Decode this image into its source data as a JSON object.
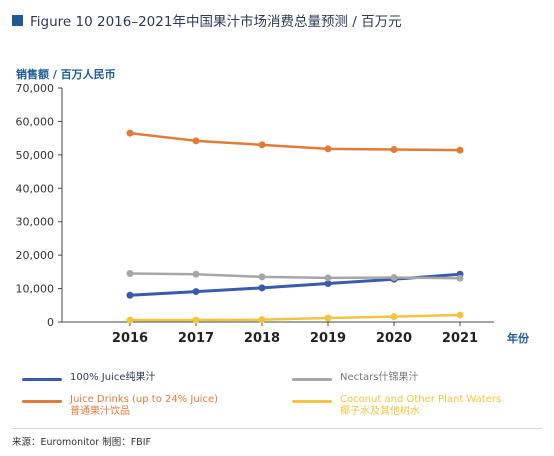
{
  "title": "Figure 10 2016–2021年中国果汁市场消费总量预测 / 百万元",
  "source": "来源：Euromonitor  制图：FBIF",
  "chart_data": {
    "type": "line",
    "title": "Figure 10 2016–2021年中国果汁市场消费总量预测 / 百万元",
    "ylabel": "销售额 / 百万人民币",
    "xlabel": "年份",
    "x": [
      "2016",
      "2017",
      "2018",
      "2019",
      "2020",
      "2021"
    ],
    "ylim": [
      0,
      70000
    ],
    "yticks": [
      "0",
      "10,000",
      "20,000",
      "30,000",
      "40,000",
      "50,000",
      "60,000",
      "70,000"
    ],
    "grid": false,
    "legend_position": "bottom",
    "series": [
      {
        "name": "100% Juice纯果汁",
        "name_lines": [
          "100% Juice纯果汁"
        ],
        "color": "#3a5ba9",
        "values": [
          8000,
          9100,
          10200,
          11500,
          12800,
          14300
        ]
      },
      {
        "name": "Nectars什锦果汁",
        "name_lines": [
          "Nectars什锦果汁"
        ],
        "color": "#a6a6a6",
        "values": [
          14500,
          14300,
          13500,
          13200,
          13300,
          13100
        ]
      },
      {
        "name": "Juice Drinks (up to 24% Juice)普通果汁饮品",
        "name_lines": [
          "Juice Drinks (up to 24% Juice)",
          "普通果汁饮品"
        ],
        "color": "#e07b39",
        "values": [
          56500,
          54200,
          53000,
          51800,
          51600,
          51400
        ]
      },
      {
        "name": "Coconut and Other Plant Waters椰子水及其他树水",
        "name_lines": [
          "Coconut and Other Plant Waters",
          "椰子水及其他树水"
        ],
        "color": "#f2c442",
        "values": [
          600,
          600,
          700,
          1200,
          1600,
          2100
        ]
      }
    ]
  }
}
